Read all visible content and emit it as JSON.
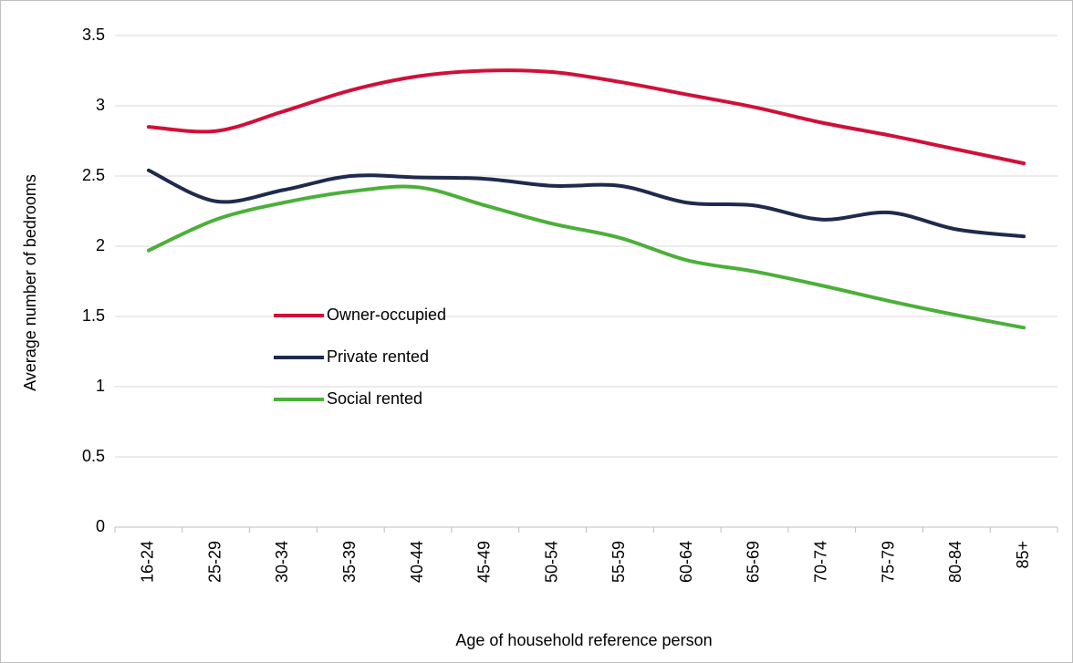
{
  "chart_data": {
    "type": "line",
    "x_label": "Age of household reference person",
    "y_label": "Average number of bedrooms",
    "categories": [
      "16-24",
      "25-29",
      "30-34",
      "35-39",
      "40-44",
      "45-49",
      "50-54",
      "55-59",
      "60-64",
      "65-69",
      "70-74",
      "75-79",
      "80-84",
      "85+"
    ],
    "series": [
      {
        "name": "Owner-occupied",
        "color": "#d0103a",
        "values": [
          2.85,
          2.82,
          2.96,
          3.11,
          3.21,
          3.25,
          3.24,
          3.17,
          3.08,
          2.99,
          2.88,
          2.79,
          2.69,
          2.59
        ]
      },
      {
        "name": "Private rented",
        "color": "#1f2a4d",
        "values": [
          2.54,
          2.32,
          2.4,
          2.5,
          2.49,
          2.48,
          2.43,
          2.43,
          2.31,
          2.29,
          2.19,
          2.24,
          2.12,
          2.07
        ]
      },
      {
        "name": "Social rented",
        "color": "#4caf3a",
        "values": [
          1.97,
          2.19,
          2.31,
          2.39,
          2.42,
          2.29,
          2.16,
          2.06,
          1.9,
          1.82,
          1.72,
          1.61,
          1.51,
          1.42
        ]
      }
    ],
    "ylim": [
      0,
      3.5
    ],
    "yticks": [
      0,
      0.5,
      1,
      1.5,
      2,
      2.5,
      3,
      3.5
    ],
    "grid": true,
    "smooth": true,
    "legend_position": "center-left"
  }
}
